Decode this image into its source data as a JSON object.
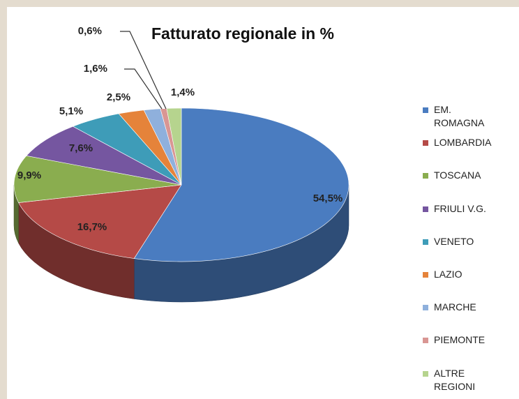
{
  "chart_data": {
    "type": "pie",
    "title": "Fatturato regionale in %",
    "categories": [
      "EM. ROMAGNA",
      "LOMBARDIA",
      "TOSCANA",
      "FRIULI V.G.",
      "VENETO",
      "LAZIO",
      "MARCHE",
      "PIEMONTE",
      "ALTRE REGIONI"
    ],
    "values": [
      54.5,
      16.7,
      9.9,
      7.6,
      5.1,
      2.5,
      1.6,
      0.6,
      1.4
    ],
    "value_labels": [
      "54,5%",
      "16,7%",
      "9,9%",
      "7,6%",
      "5,1%",
      "2,5%",
      "1,6%",
      "0,6%",
      "1,4%"
    ],
    "colors": [
      "#4a7cc0",
      "#b54a47",
      "#8aad4f",
      "#7556a0",
      "#3e9cb8",
      "#e5833a",
      "#8fb0dc",
      "#d99693",
      "#b6d48e"
    ],
    "legend": "right"
  }
}
